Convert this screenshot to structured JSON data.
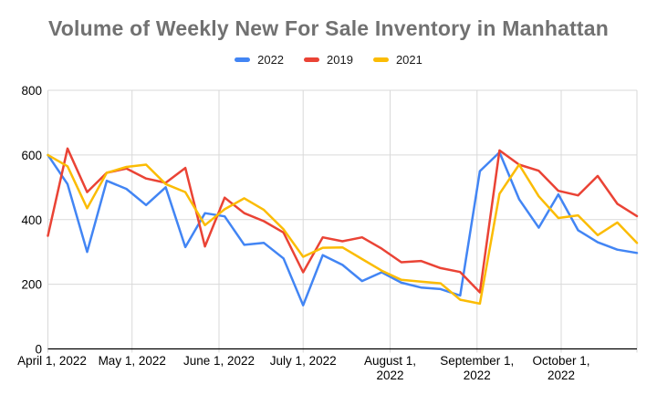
{
  "title": "Volume of Weekly New For Sale Inventory in Manhattan",
  "legend": [
    {
      "label": "2022",
      "color": "#4285F4"
    },
    {
      "label": "2019",
      "color": "#EA4335"
    },
    {
      "label": "2021",
      "color": "#FBBC04"
    }
  ],
  "colors": {
    "background": "#ffffff",
    "title_text": "#717171",
    "axis_text": "#000000",
    "gridline": "#d9d9d9",
    "axis_line": "#000000"
  },
  "chart_data": {
    "type": "line",
    "title": "Volume of Weekly New For Sale Inventory in Manhattan",
    "xlabel": "",
    "ylabel": "",
    "grid": true,
    "legend_position": "top",
    "x_dates": [
      "Apr 1",
      "Apr 8",
      "Apr 15",
      "Apr 22",
      "Apr 29",
      "May 6",
      "May 13",
      "May 20",
      "May 27",
      "Jun 3",
      "Jun 10",
      "Jun 17",
      "Jun 24",
      "Jul 1",
      "Jul 8",
      "Jul 15",
      "Jul 22",
      "Jul 29",
      "Aug 5",
      "Aug 12",
      "Aug 19",
      "Aug 26",
      "Sep 2",
      "Sep 9",
      "Sep 16",
      "Sep 23",
      "Sep 30",
      "Oct 7",
      "Oct 14",
      "Oct 21",
      "Oct 28"
    ],
    "series": [
      {
        "name": "2022",
        "color": "#4285F4",
        "values": [
          600,
          510,
          300,
          520,
          495,
          445,
          500,
          315,
          420,
          410,
          322,
          328,
          280,
          135,
          290,
          260,
          210,
          237,
          205,
          190,
          185,
          165,
          550,
          608,
          463,
          375,
          478,
          367,
          330,
          307,
          297
        ]
      },
      {
        "name": "2019",
        "color": "#EA4335",
        "values": [
          350,
          620,
          485,
          545,
          558,
          527,
          514,
          560,
          317,
          468,
          420,
          395,
          360,
          237,
          345,
          333,
          345,
          310,
          268,
          272,
          250,
          238,
          175,
          614,
          570,
          551,
          489,
          475,
          535,
          449,
          411
        ]
      },
      {
        "name": "2021",
        "color": "#FBBC04",
        "values": [
          600,
          565,
          435,
          545,
          563,
          570,
          510,
          485,
          383,
          432,
          466,
          430,
          370,
          285,
          313,
          314,
          278,
          242,
          214,
          208,
          203,
          152,
          140,
          480,
          570,
          472,
          405,
          413,
          352,
          391,
          328
        ]
      }
    ],
    "x_axis": {
      "tick_labels": [
        [
          "April 1, 2022"
        ],
        [
          "May 1, 2022"
        ],
        [
          "June 1, 2022"
        ],
        [
          "July 1, 2022"
        ],
        [
          "August 1,",
          "2022"
        ],
        [
          "September 1,",
          "2022"
        ],
        [
          "October 1,",
          "2022"
        ]
      ],
      "tick_day_offsets": [
        0,
        30,
        61,
        91,
        122,
        153,
        183
      ],
      "total_days": 210
    },
    "y_axis": {
      "ticks": [
        0,
        200,
        400,
        600,
        800
      ],
      "range": [
        0,
        800
      ]
    }
  }
}
